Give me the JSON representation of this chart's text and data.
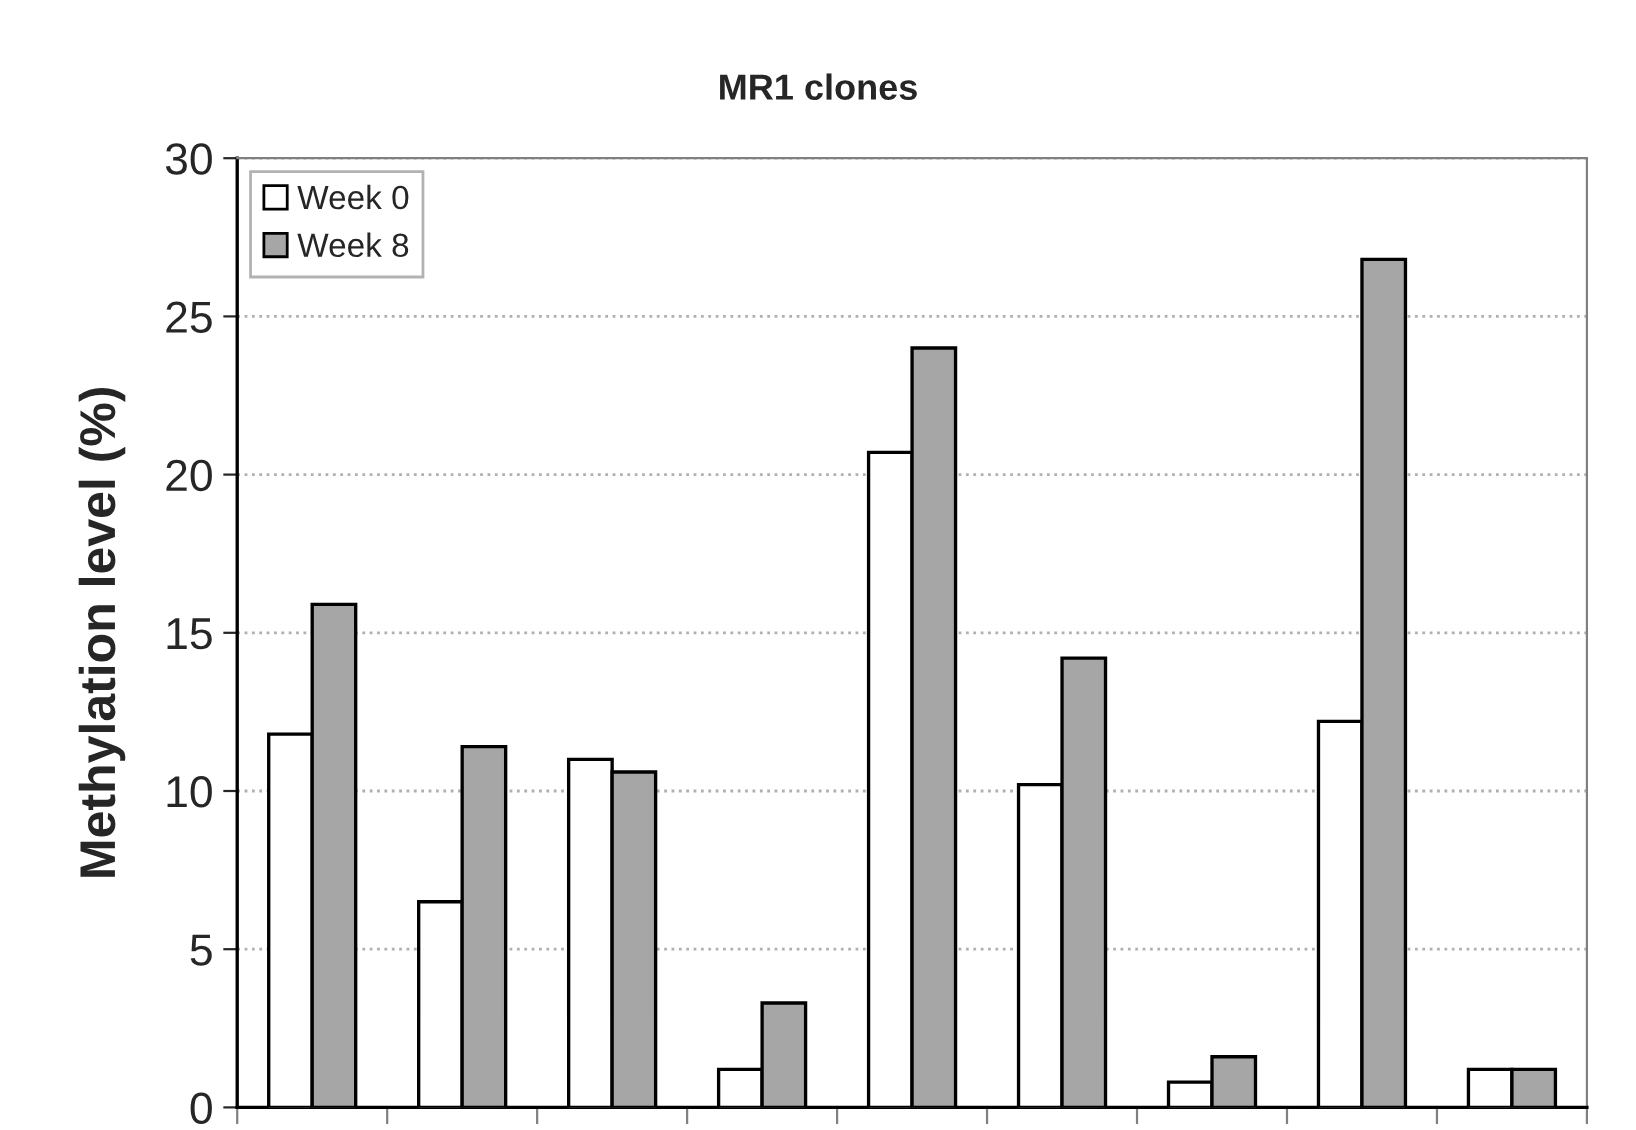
{
  "chart_data": {
    "type": "bar",
    "title": "MR1 clones",
    "ylabel": "Methylation level (%)",
    "categories": [
      null,
      null,
      null,
      null,
      null,
      null,
      null,
      null,
      null
    ],
    "series": [
      {
        "name": "Week 0",
        "color": "#ffffff",
        "values": [
          11.8,
          6.5,
          11.0,
          1.2,
          20.7,
          10.2,
          0.8,
          12.2,
          1.2
        ]
      },
      {
        "name": "Week 8",
        "color": "#a6a6a6",
        "values": [
          15.9,
          11.4,
          10.6,
          3.3,
          24.0,
          14.2,
          1.6,
          26.8,
          1.2
        ]
      }
    ],
    "ylim": [
      0,
      30
    ],
    "yticks": [
      0,
      5,
      10,
      15,
      20,
      25,
      30
    ],
    "grid": "y",
    "legend": "top left"
  }
}
